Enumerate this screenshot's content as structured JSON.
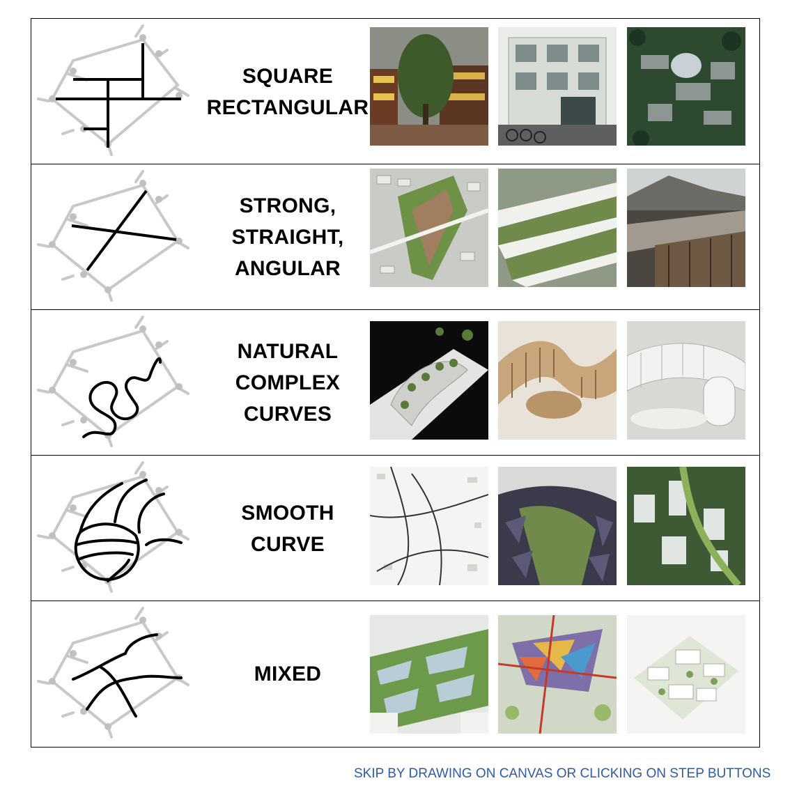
{
  "rows": [
    {
      "label_lines": [
        "SQUARE",
        "RECTANGULAR"
      ],
      "sketch": "rectangular-grid-sketch",
      "photos": [
        "courtyard-building-photo",
        "hauptgebaeude-entrance-photo",
        "aerial-campus-dome-photo"
      ]
    },
    {
      "label_lines": [
        "STRONG,",
        "STRAIGHT,",
        "ANGULAR"
      ],
      "sketch": "angular-diagonal-sketch",
      "photos": [
        "angular-masterplan-render",
        "angular-green-bands-render",
        "angular-roof-hillside-render"
      ]
    },
    {
      "label_lines": [
        "NATURAL",
        "COMPLEX",
        "CURVES"
      ],
      "sketch": "complex-curves-sketch",
      "photos": [
        "curved-terrace-model-photo",
        "wooden-curved-model-photo",
        "white-curved-model-photo"
      ]
    },
    {
      "label_lines": [
        "SMOOTH",
        "CURVE"
      ],
      "sketch": "smooth-curve-sketch",
      "photos": [
        "smooth-curve-site-plan",
        "curved-canopy-aerial-render",
        "green-district-aerial-render"
      ]
    },
    {
      "label_lines": [
        "MIXED"
      ],
      "sketch": "mixed-network-sketch",
      "photos": [
        "mixed-green-district-render",
        "mixed-colorful-masterplan",
        "mixed-white-blocks-plan"
      ]
    }
  ],
  "footer": {
    "text": "SKIP BY DRAWING ON CANVAS OR CLICKING ON STEP BUTTONS"
  },
  "colors": {
    "footer_text": "#2e5aa8",
    "sketch_grey": "#c8c8c8",
    "sketch_black": "#000000"
  }
}
